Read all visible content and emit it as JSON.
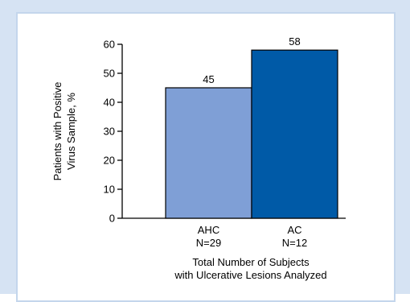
{
  "chart_data": {
    "type": "bar",
    "categories": [
      "AHC",
      "AC"
    ],
    "category_sublabels": [
      "N=29",
      "N=12"
    ],
    "values": [
      45,
      58
    ],
    "data_labels": [
      "45",
      "58"
    ],
    "bar_colors": [
      "#7f9fd6",
      "#005aa7"
    ],
    "ylabel_lines": [
      "Patients with Positive",
      "Virus Sample, %"
    ],
    "xlabel_lines": [
      "Total Number of Subjects",
      "with Ulcerative Lesions Analyzed"
    ],
    "ylim": [
      0,
      60
    ],
    "yticks": [
      0,
      10,
      20,
      30,
      40,
      50,
      60
    ],
    "grid": false,
    "legend": "none"
  },
  "colors": {
    "frame": "#d6e3f3",
    "panel": "#ffffff",
    "axis": "#000000"
  }
}
